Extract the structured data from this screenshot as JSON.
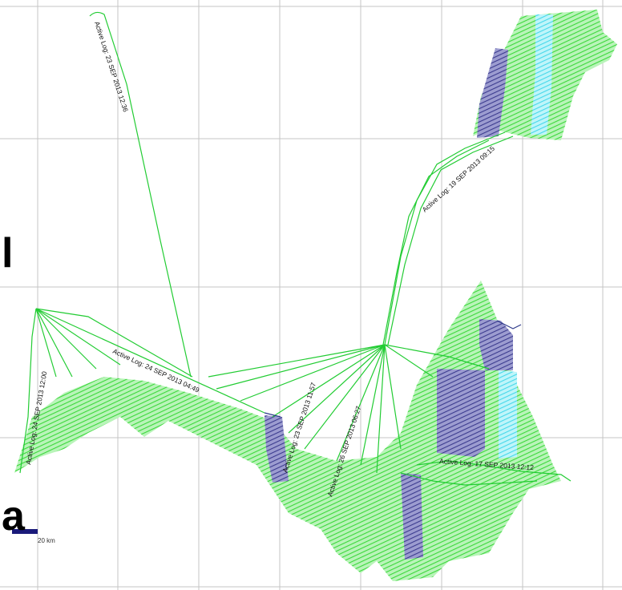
{
  "panel_letters": {
    "top": "l",
    "bottom": "a"
  },
  "track_labels": {
    "log_23_sep": "Active Log: 23 SEP 2013 12:36",
    "log_19_sep": "Active Log: 19 SEP 2013 09:15",
    "log_24_sep_a": "Active Log: 24 SEP 2013 12:00",
    "log_24_sep_b": "Active Log: 24 SEP 2013 04:49",
    "log_23_sep_b": "Active Log: 23 SEP 2013 11:57",
    "log_26_sep": "Active Log: 26 SEP 2013 06:27",
    "log_17_sep": "Active Log: 17 SEP 2013 12:12"
  },
  "scale_bar": {
    "label": "20 km"
  },
  "colors": {
    "track": "#22cc33",
    "survey_green": "#7ee87e",
    "survey_blue": "#5a5aa8",
    "survey_cyan": "#5fe0ee",
    "grid": "#c4c4c4",
    "scale": "#1a1a7a"
  }
}
